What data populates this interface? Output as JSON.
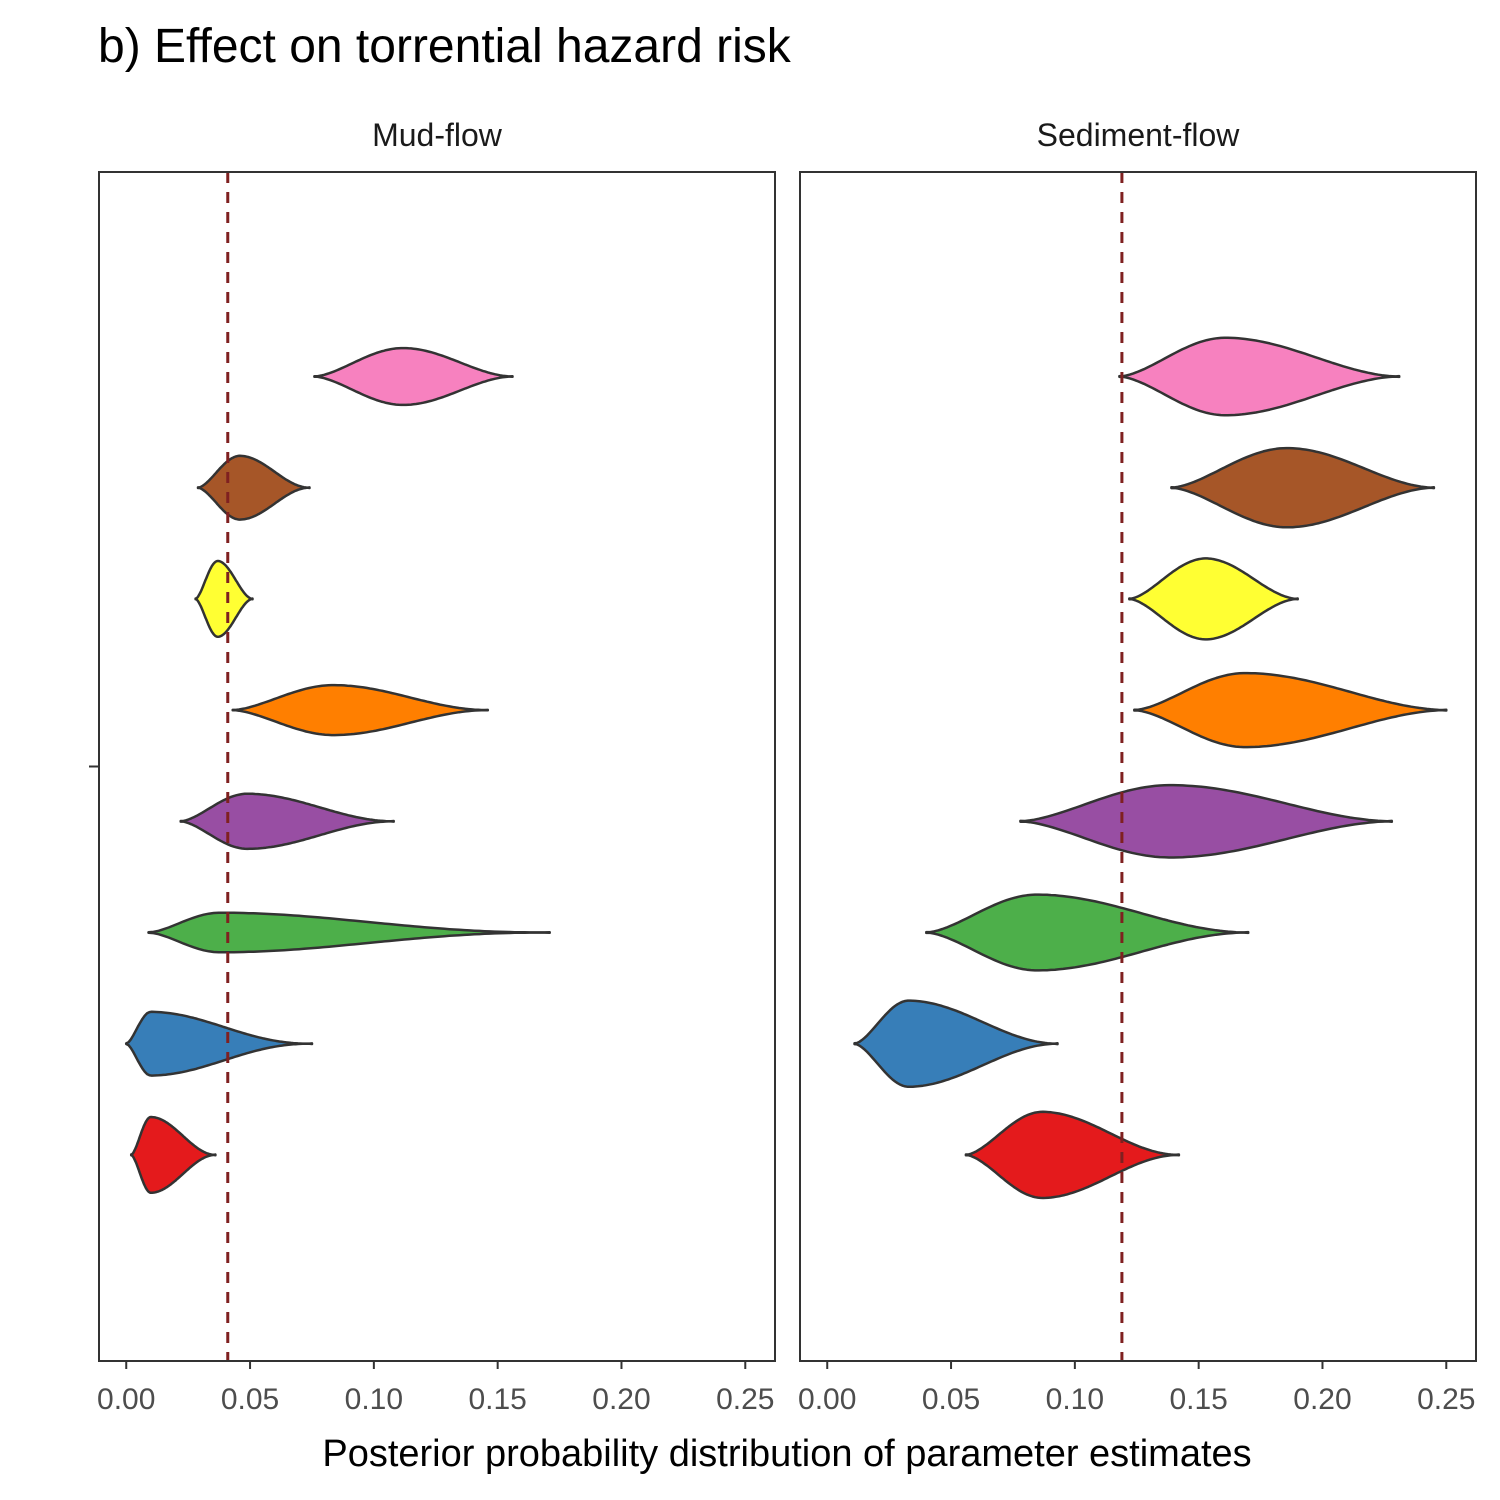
{
  "chart_data": {
    "type": "violin",
    "title": "b) Effect on torrential hazard risk",
    "xlabel": "Posterior probability distribution of parameter estimates",
    "ylabel": "",
    "xlim": [
      -0.011,
      0.262
    ],
    "xticks": [
      0.0,
      0.05,
      0.1,
      0.15,
      0.2,
      0.25
    ],
    "xtick_labels": [
      "0.00",
      "0.05",
      "0.10",
      "0.15",
      "0.20",
      "0.25"
    ],
    "grid": false,
    "legend": "none",
    "panels": [
      {
        "name": "Mud-flow",
        "reference_line": 0.041,
        "violins": [
          {
            "color": "#F781BF",
            "min": 0.076,
            "max": 0.156,
            "mode": 0.112,
            "width": 0.33,
            "skew": 1.2
          },
          {
            "color": "#A65628",
            "min": 0.029,
            "max": 0.074,
            "mode": 0.046,
            "width": 0.37,
            "skew": 1.3
          },
          {
            "color": "#FFFF33",
            "min": 0.028,
            "max": 0.051,
            "mode": 0.037,
            "width": 0.44,
            "skew": 1.2
          },
          {
            "color": "#FF7F00",
            "min": 0.043,
            "max": 0.146,
            "mode": 0.084,
            "width": 0.29,
            "skew": 1.3
          },
          {
            "color": "#984EA3",
            "min": 0.022,
            "max": 0.108,
            "mode": 0.049,
            "width": 0.32,
            "skew": 1.3
          },
          {
            "color": "#4DAF4A",
            "min": 0.009,
            "max": 0.171,
            "mode": 0.038,
            "width": 0.23,
            "skew": 1.5
          },
          {
            "color": "#377EB8",
            "min": 0.0,
            "max": 0.075,
            "mode": 0.01,
            "width": 0.37,
            "skew": 1.5
          },
          {
            "color": "#E41A1C",
            "min": 0.002,
            "max": 0.036,
            "mode": 0.01,
            "width": 0.44,
            "skew": 1.3
          }
        ]
      },
      {
        "name": "Sediment-flow",
        "reference_line": 0.119,
        "violins": [
          {
            "color": "#F781BF",
            "min": 0.118,
            "max": 0.231,
            "mode": 0.161,
            "width": 0.45,
            "skew": 1.2
          },
          {
            "color": "#A65628",
            "min": 0.139,
            "max": 0.245,
            "mode": 0.186,
            "width": 0.46,
            "skew": 1.2
          },
          {
            "color": "#FFFF33",
            "min": 0.122,
            "max": 0.19,
            "mode": 0.153,
            "width": 0.47,
            "skew": 1.2
          },
          {
            "color": "#FF7F00",
            "min": 0.124,
            "max": 0.25,
            "mode": 0.169,
            "width": 0.43,
            "skew": 1.2
          },
          {
            "color": "#984EA3",
            "min": 0.078,
            "max": 0.228,
            "mode": 0.139,
            "width": 0.42,
            "skew": 1.2
          },
          {
            "color": "#4DAF4A",
            "min": 0.04,
            "max": 0.17,
            "mode": 0.085,
            "width": 0.44,
            "skew": 1.3
          },
          {
            "color": "#377EB8",
            "min": 0.011,
            "max": 0.093,
            "mode": 0.033,
            "width": 0.5,
            "skew": 1.3
          },
          {
            "color": "#E41A1C",
            "min": 0.056,
            "max": 0.142,
            "mode": 0.087,
            "width": 0.5,
            "skew": 1.3
          }
        ]
      }
    ]
  }
}
